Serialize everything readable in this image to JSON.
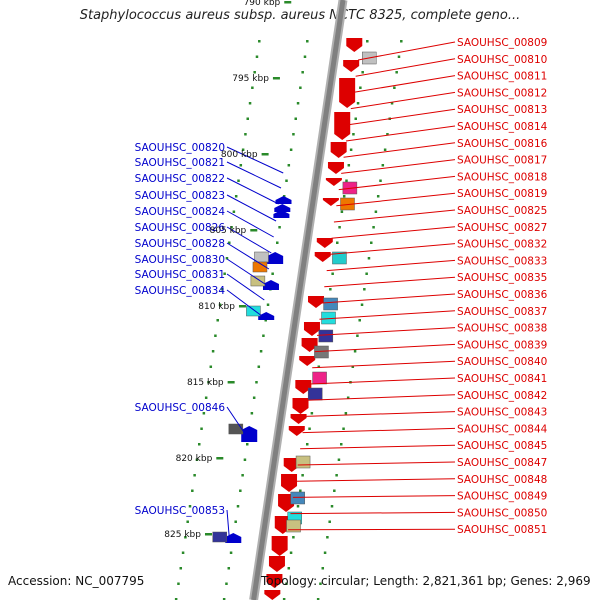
{
  "title": "Staphylococcus aureus subsp. aureus NCTC 8325, complete geno...",
  "accession": "Accession: NC_007795",
  "topology": "Topology: circular; Length: 2,821,361 bp; Genes: 2,969",
  "colors": {
    "forward": "#dd0000",
    "reverse": "#0000cc",
    "backbone": "#808080",
    "tick": "#2a8a2a"
  },
  "kbp_labels": [
    {
      "text": "790 kbp",
      "kbp": 790
    },
    {
      "text": "795 kbp",
      "kbp": 795
    },
    {
      "text": "800 kbp",
      "kbp": 800
    },
    {
      "text": "805 kbp",
      "kbp": 805
    },
    {
      "text": "810 kbp",
      "kbp": 810
    },
    {
      "text": "815 kbp",
      "kbp": 815
    },
    {
      "text": "820 kbp",
      "kbp": 820
    },
    {
      "text": "825 kbp",
      "kbp": 825
    }
  ],
  "reverse_genes": [
    "SAOUHSC_00820",
    "SAOUHSC_00821",
    "SAOUHSC_00822",
    "SAOUHSC_00823",
    "SAOUHSC_00824",
    "SAOUHSC_00826",
    "SAOUHSC_00828",
    "SAOUHSC_00830",
    "SAOUHSC_00831",
    "SAOUHSC_00834",
    "SAOUHSC_00846",
    "SAOUHSC_00853"
  ],
  "forward_genes": [
    "SAOUHSC_00809",
    "SAOUHSC_00810",
    "SAOUHSC_00811",
    "SAOUHSC_00812",
    "SAOUHSC_00813",
    "SAOUHSC_00814",
    "SAOUHSC_00816",
    "SAOUHSC_00817",
    "SAOUHSC_00818",
    "SAOUHSC_00819",
    "SAOUHSC_00825",
    "SAOUHSC_00827",
    "SAOUHSC_00832",
    "SAOUHSC_00833",
    "SAOUHSC_00835",
    "SAOUHSC_00836",
    "SAOUHSC_00837",
    "SAOUHSC_00838",
    "SAOUHSC_00839",
    "SAOUHSC_00840",
    "SAOUHSC_00841",
    "SAOUHSC_00842",
    "SAOUHSC_00843",
    "SAOUHSC_00844",
    "SAOUHSC_00845",
    "SAOUHSC_00847",
    "SAOUHSC_00848",
    "SAOUHSC_00849",
    "SAOUHSC_00850",
    "SAOUHSC_00851"
  ]
}
